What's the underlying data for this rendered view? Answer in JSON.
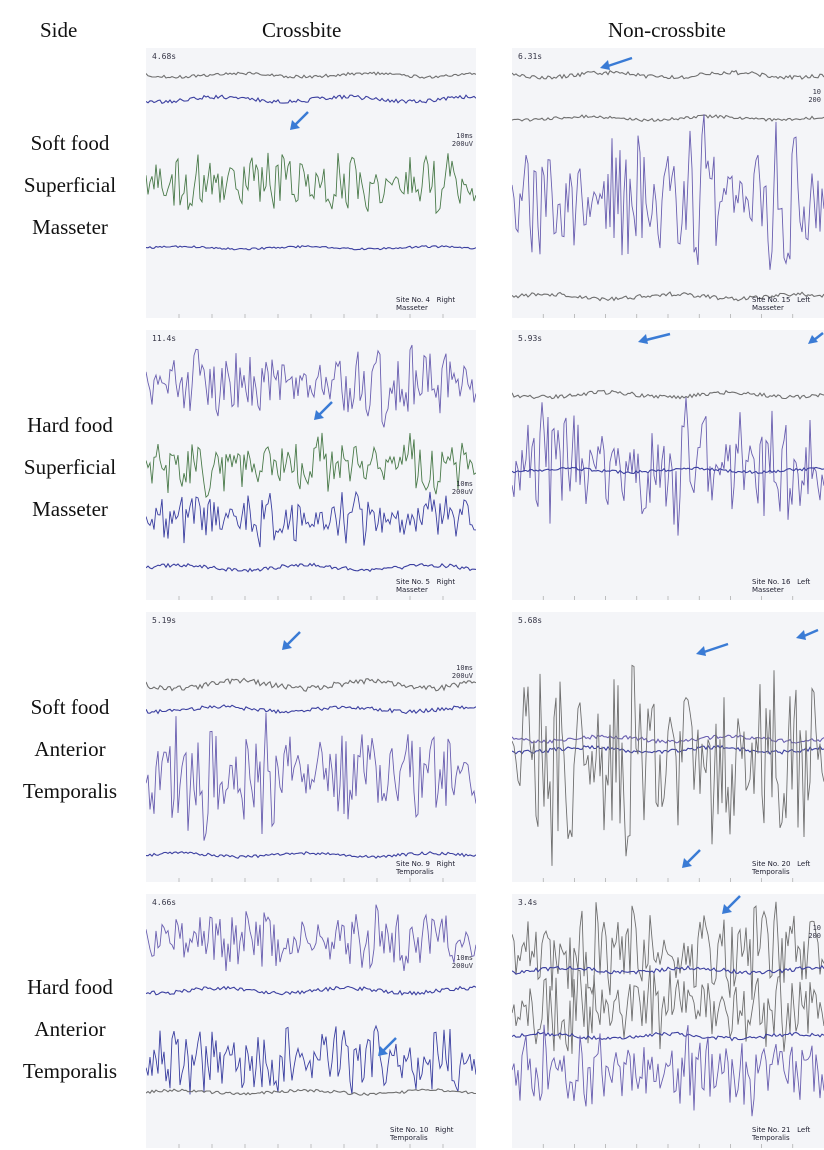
{
  "header": {
    "side": "Side",
    "crossbite": "Crossbite",
    "noncrossbite": "Non-crossbite"
  },
  "rows": [
    {
      "lines": [
        "Soft food",
        "Superficial",
        "Masseter"
      ]
    },
    {
      "lines": [
        "Hard food",
        "Superficial",
        "Masseter"
      ]
    },
    {
      "lines": [
        "Soft food",
        "Anterior",
        "Temporalis"
      ]
    },
    {
      "lines": [
        "Hard food",
        "Anterior",
        "Temporalis"
      ]
    }
  ],
  "panels": [
    {
      "time": "4.68s",
      "scale1": "10ms",
      "scale2": "200uV",
      "site_no": "Site No. 4",
      "side": "Right",
      "muscle": "Masseter"
    },
    {
      "time": "6.31s",
      "scale1": "10",
      "scale2": "200",
      "site_no": "Site No. 15",
      "side": "Left",
      "muscle": "Masseter"
    },
    {
      "time": "11.4s",
      "scale1": "10ms",
      "scale2": "200uV",
      "site_no": "Site No. 5",
      "side": "Right",
      "muscle": "Masseter"
    },
    {
      "time": "5.93s",
      "scale1": "",
      "scale2": "",
      "site_no": "Site No. 16",
      "side": "Left",
      "muscle": "Masseter"
    },
    {
      "time": "5.19s",
      "scale1": "10ms",
      "scale2": "200uV",
      "site_no": "Site No. 9",
      "side": "Right",
      "muscle": "Temporalis"
    },
    {
      "time": "5.68s",
      "scale1": "",
      "scale2": "",
      "site_no": "Site No. 20",
      "side": "Left",
      "muscle": "Temporalis"
    },
    {
      "time": "4.66s",
      "scale1": "10ms",
      "scale2": "200uV",
      "site_no": "Site No. 10",
      "side": "Right",
      "muscle": "Temporalis"
    },
    {
      "time": "3.4s",
      "scale1": "10",
      "scale2": "200",
      "site_no": "Site No. 21",
      "side": "Left",
      "muscle": "Temporalis"
    }
  ],
  "colors": {
    "trace_blue": "#3b3fa0",
    "trace_purple": "#6a5fb0",
    "trace_gray": "#6f6f6f",
    "trace_green": "#4a7a4a",
    "arrow": "#3a7bd5"
  }
}
